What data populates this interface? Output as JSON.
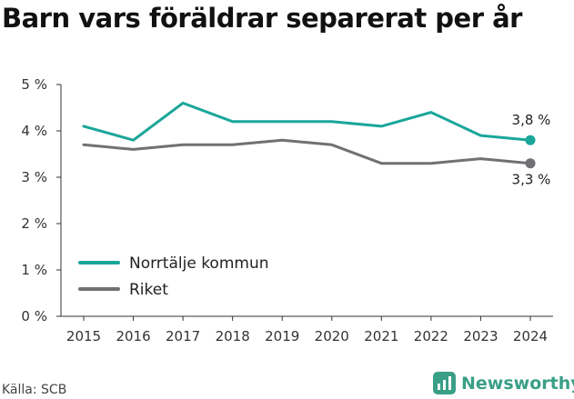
{
  "title": "Barn vars föräldrar separerat per år",
  "source": "Källa: SCB",
  "brand": "Newsworthy",
  "colors": {
    "norrtalje": "#1aa69a",
    "riket": "#707075",
    "axis": "#333333",
    "grid": "#e5e5e5",
    "brand": "#3a9f87"
  },
  "chart_data": {
    "type": "line",
    "title": "Barn vars föräldrar separerat per år",
    "xlabel": "",
    "ylabel": "",
    "x": [
      2015,
      2016,
      2017,
      2018,
      2019,
      2020,
      2021,
      2022,
      2023,
      2024
    ],
    "yticks": [
      "0 %",
      "1 %",
      "2 %",
      "3 %",
      "4 %",
      "5 %"
    ],
    "ylim": [
      0,
      5
    ],
    "grid": false,
    "legend_position": "bottom-left",
    "series": [
      {
        "name": "Norrtälje kommun",
        "color": "#1aa69a",
        "values": [
          4.1,
          3.8,
          4.6,
          4.2,
          4.2,
          4.2,
          4.1,
          4.4,
          3.9,
          3.8
        ],
        "end_label": "3,8 %"
      },
      {
        "name": "Riket",
        "color": "#707075",
        "values": [
          3.7,
          3.6,
          3.7,
          3.7,
          3.8,
          3.7,
          3.3,
          3.3,
          3.4,
          3.3
        ],
        "end_label": "3,3 %"
      }
    ]
  }
}
